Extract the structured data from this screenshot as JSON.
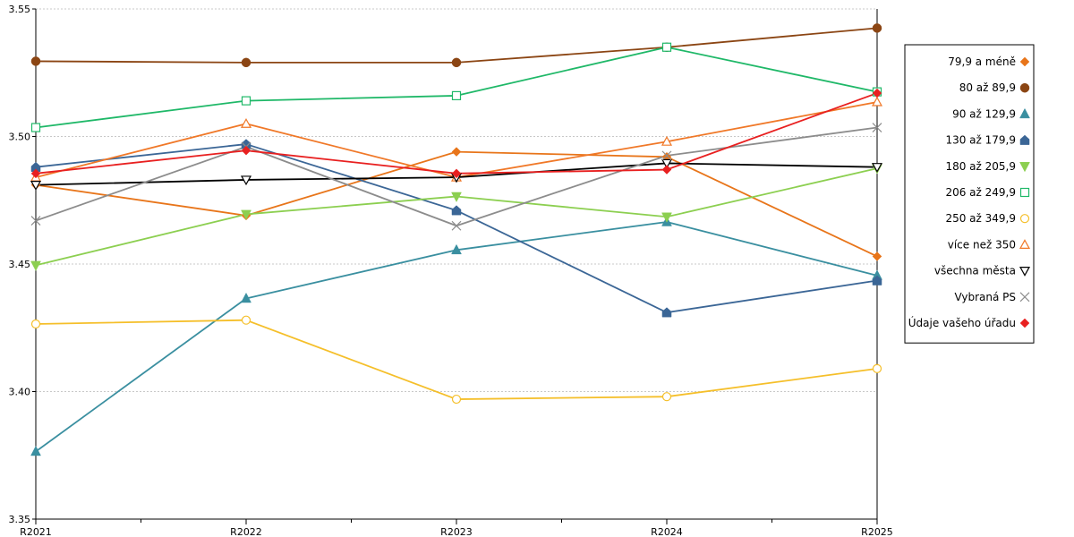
{
  "chart_data": {
    "type": "line",
    "title": "",
    "xlabel": "",
    "ylabel": "",
    "categories": [
      "R2021",
      "R2022",
      "R2023",
      "R2024",
      "R2025"
    ],
    "ylim": [
      3.35,
      3.55
    ],
    "yticks": [
      "3.35",
      "3.40",
      "3.45",
      "3.50",
      "3.55"
    ],
    "grid": "horizontal dashed",
    "legend_position": "right",
    "series": [
      {
        "name": "79,9 a méně",
        "color": "#e8751a",
        "marker": "diamond",
        "values": [
          3.481,
          3.469,
          3.494,
          3.492,
          3.453
        ]
      },
      {
        "name": "80 až 89,9",
        "color": "#8b4513",
        "marker": "circle",
        "values": [
          3.5295,
          3.529,
          3.529,
          3.535,
          3.5425
        ]
      },
      {
        "name": "90 až 129,9",
        "color": "#3a8fa0",
        "marker": "triangle-up",
        "values": [
          3.3765,
          3.4365,
          3.4555,
          3.4665,
          3.4455
        ]
      },
      {
        "name": "130 až 179,9",
        "color": "#3b6696",
        "marker": "house",
        "values": [
          3.488,
          3.497,
          3.471,
          3.431,
          3.4435
        ]
      },
      {
        "name": "180 až 205,9",
        "color": "#8ccf50",
        "marker": "triangle-down",
        "values": [
          3.4495,
          3.4695,
          3.4765,
          3.4685,
          3.4875
        ]
      },
      {
        "name": "206 až 249,9",
        "color": "#1fb868",
        "marker": "square-open",
        "values": [
          3.5035,
          3.514,
          3.516,
          3.535,
          3.5175
        ]
      },
      {
        "name": "250 až 349,9",
        "color": "#f5bf2a",
        "marker": "circle-open",
        "values": [
          3.4265,
          3.428,
          3.397,
          3.398,
          3.409
        ]
      },
      {
        "name": "více než 350",
        "color": "#f07828",
        "marker": "triangle-up-open",
        "values": [
          3.484,
          3.505,
          3.484,
          3.498,
          3.5135
        ]
      },
      {
        "name": "všechna města",
        "color": "#000000",
        "marker": "triangle-down-open",
        "values": [
          3.481,
          3.483,
          3.484,
          3.4895,
          3.488
        ]
      },
      {
        "name": "Vybraná PS",
        "color": "#8c8c8c",
        "marker": "x",
        "values": [
          3.467,
          3.496,
          3.465,
          3.4925,
          3.5035
        ]
      },
      {
        "name": "Údaje vašeho úřadu",
        "color": "#e82020",
        "marker": "diamond",
        "values": [
          3.4855,
          3.4945,
          3.4855,
          3.487,
          3.517
        ]
      }
    ]
  }
}
